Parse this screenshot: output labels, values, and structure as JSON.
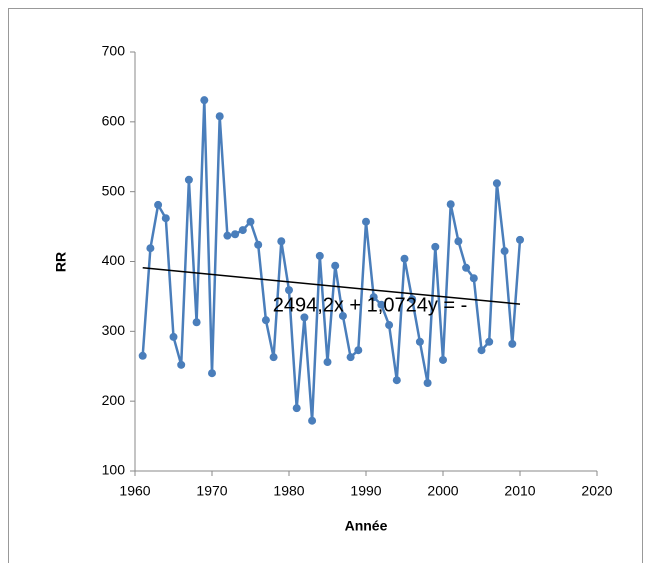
{
  "chart_data": {
    "type": "line",
    "x_label": "Année",
    "y_label": "RR",
    "annotation": "2494,2x + 1,0724y = -",
    "x": [
      1961,
      1962,
      1963,
      1964,
      1965,
      1966,
      1967,
      1968,
      1969,
      1970,
      1971,
      1972,
      1973,
      1974,
      1975,
      1976,
      1977,
      1978,
      1979,
      1980,
      1981,
      1982,
      1983,
      1984,
      1985,
      1986,
      1987,
      1988,
      1989,
      1990,
      1991,
      1992,
      1993,
      1994,
      1995,
      1996,
      1997,
      1998,
      1999,
      2000,
      2001,
      2002,
      2003,
      2004,
      2005,
      2006,
      2007,
      2008,
      2009,
      2010
    ],
    "series": [
      {
        "color": "#4a7ebb",
        "values": [
          265,
          419,
          481,
          462,
          292,
          252,
          517,
          313,
          631,
          240,
          608,
          437,
          439,
          445,
          457,
          424,
          316,
          263,
          429,
          359,
          190,
          320,
          172,
          408,
          256,
          394,
          322,
          263,
          273,
          457,
          349,
          338,
          309,
          230,
          404,
          346,
          285,
          226,
          421,
          259,
          482,
          429,
          391,
          376,
          273,
          285,
          512,
          415,
          282,
          431
        ]
      }
    ],
    "trendline": {
      "color": "#000000",
      "x": [
        1961,
        2010
      ],
      "values": [
        391,
        339
      ]
    },
    "xlim": [
      1960,
      2020
    ],
    "xticks": [
      1960,
      1970,
      1980,
      1990,
      2000,
      2010,
      2020
    ],
    "ylim": [
      100,
      700
    ],
    "yticks": [
      100,
      200,
      300,
      400,
      500,
      600,
      700
    ],
    "grid": false
  }
}
